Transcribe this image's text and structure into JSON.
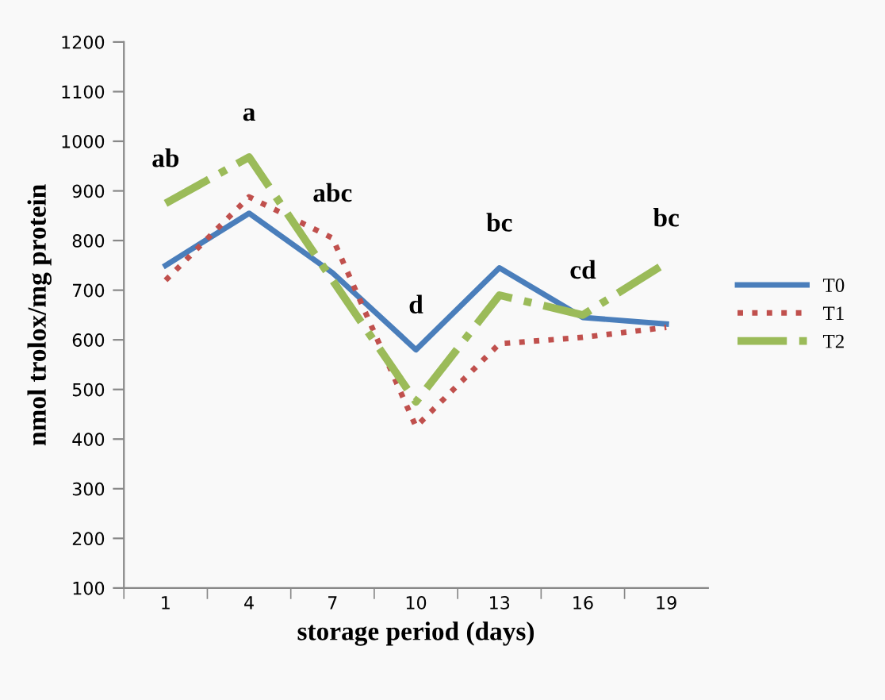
{
  "chart_data": {
    "type": "line",
    "xlabel": "storage period (days)",
    "ylabel": "nmol trolox/mg protein",
    "categories": [
      "1",
      "4",
      "7",
      "10",
      "13",
      "16",
      "19"
    ],
    "series": [
      {
        "name": "T0",
        "color": "#4a7ebb",
        "line_style": "solid",
        "values": [
          750,
          855,
          735,
          580,
          745,
          645,
          632
        ]
      },
      {
        "name": "T1",
        "color": "#c0504d",
        "line_style": "dotted",
        "values": [
          720,
          888,
          805,
          425,
          592,
          605,
          625
        ]
      },
      {
        "name": "T2",
        "color": "#9bbb59",
        "line_style": "dashdot",
        "values": [
          875,
          968,
          720,
          475,
          690,
          650,
          755
        ]
      }
    ],
    "annotations": [
      "ab",
      "a",
      "abc",
      "d",
      "bc",
      "cd",
      "bc"
    ],
    "ylim": [
      100,
      1200
    ],
    "yticks": [
      100,
      200,
      300,
      400,
      500,
      600,
      700,
      800,
      900,
      1000,
      1100,
      1200
    ],
    "grid": false,
    "legend": "right",
    "marker": "none"
  }
}
